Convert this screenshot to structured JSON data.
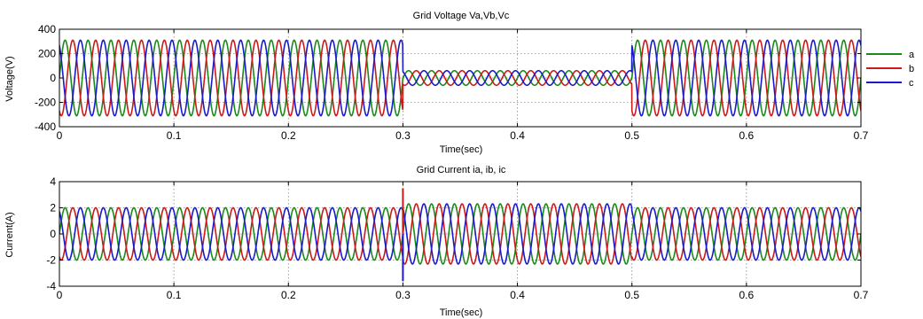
{
  "chart_data": [
    {
      "type": "line",
      "title": "Grid Voltage Va,Vb,Vc",
      "xlabel": "Time(sec)",
      "ylabel": "Voltage(V)",
      "xlim": [
        0,
        0.7
      ],
      "ylim": [
        -400,
        400
      ],
      "xticks": [
        0,
        0.1,
        0.2,
        0.3,
        0.4,
        0.5,
        0.6,
        0.7
      ],
      "xtick_labels": [
        "0",
        "0.1",
        "0.2",
        "0.3",
        "0.4",
        "0.5",
        "0.6",
        "0.7"
      ],
      "yticks": [
        -400,
        -200,
        0,
        200,
        400
      ],
      "ytick_labels": [
        "-400",
        "-200",
        "0",
        "200",
        "400"
      ],
      "grid": true,
      "legend": "right",
      "waveform": {
        "frequency_hz": 50,
        "segments": [
          {
            "t_start": 0,
            "t_end": 0.3,
            "amplitude": 310
          },
          {
            "t_start": 0.3,
            "t_end": 0.5,
            "amplitude": 60
          },
          {
            "t_start": 0.5,
            "t_end": 0.7,
            "amplitude": 310
          }
        ]
      },
      "series": [
        {
          "name": "a",
          "color": "#1a8a1a",
          "phase_deg": 0
        },
        {
          "name": "b",
          "color": "#cc1a1a",
          "phase_deg": -120
        },
        {
          "name": "c",
          "color": "#1a1acc",
          "phase_deg": 120
        }
      ]
    },
    {
      "type": "line",
      "title": "Grid Current ia, ib, ic",
      "xlabel": "Time(sec)",
      "ylabel": "Current(A)",
      "xlim": [
        0,
        0.7
      ],
      "ylim": [
        -4,
        4
      ],
      "xticks": [
        0,
        0.1,
        0.2,
        0.3,
        0.4,
        0.5,
        0.6,
        0.7
      ],
      "xtick_labels": [
        "0",
        "0.1",
        "0.2",
        "0.3",
        "0.4",
        "0.5",
        "0.6",
        "0.7"
      ],
      "yticks": [
        -4,
        -2,
        0,
        2,
        4
      ],
      "ytick_labels": [
        "-4",
        "-2",
        "0",
        "2",
        "4"
      ],
      "grid": true,
      "waveform": {
        "frequency_hz": 50,
        "segments": [
          {
            "t_start": 0,
            "t_end": 0.3,
            "amplitude": 2.0
          },
          {
            "t_start": 0.3,
            "t_end": 0.5,
            "amplitude": 2.3
          },
          {
            "t_start": 0.5,
            "t_end": 0.7,
            "amplitude": 2.0
          }
        ],
        "transients": [
          {
            "t": 0.3,
            "series": "b",
            "value": 3.5
          },
          {
            "t": 0.3,
            "series": "c",
            "value": -3.6
          }
        ]
      },
      "series": [
        {
          "color": "#1a8a1a",
          "phase_deg": 0
        },
        {
          "color": "#cc1a1a",
          "phase_deg": -120
        },
        {
          "color": "#1a1acc",
          "phase_deg": 120
        }
      ]
    }
  ]
}
